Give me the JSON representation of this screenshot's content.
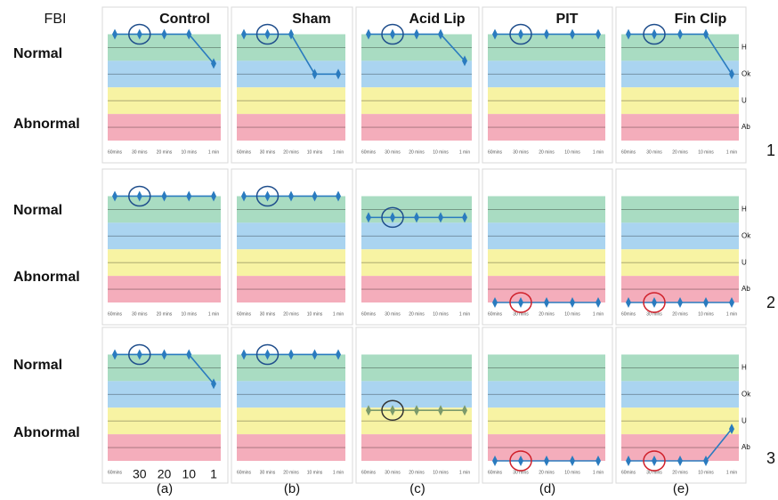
{
  "figure": {
    "ylabel": "FBI",
    "row_labels": [
      "Normal",
      "Abnormal"
    ],
    "row_numbers": [
      "1",
      "2",
      "3"
    ],
    "column_labels": [
      "(a)",
      "(b)",
      "(c)",
      "(d)",
      "(e)"
    ]
  },
  "bands": [
    {
      "label": "H",
      "from": 3,
      "to": 4,
      "color": "#a9dcc2"
    },
    {
      "label": "Ok",
      "from": 2,
      "to": 3,
      "color": "#aad4f0"
    },
    {
      "label": "U",
      "from": 1,
      "to": 2,
      "color": "#f7f3a3"
    },
    {
      "label": "Ab",
      "from": 0,
      "to": 1,
      "color": "#f4adbb"
    }
  ],
  "chart_data": [
    {
      "type": "line",
      "title": "Control",
      "categories": [
        "60mins",
        "30 mins",
        "20 mins",
        "10 mins",
        "1 min"
      ],
      "values": [
        4,
        4,
        4,
        4,
        2.9
      ],
      "color": "#2a7bbf",
      "ylim": [
        0,
        4.15
      ],
      "highlight_index": 1,
      "highlight_color": "#1f4e8c"
    },
    {
      "type": "line",
      "title": "Sham",
      "categories": [
        "60mins",
        "30 mins",
        "20 mins",
        "10 mins",
        "1 min"
      ],
      "values": [
        4,
        4,
        4,
        2.5,
        2.5
      ],
      "color": "#2a7bbf",
      "ylim": [
        0,
        4.15
      ],
      "highlight_index": 1,
      "highlight_color": "#1f4e8c"
    },
    {
      "type": "line",
      "title": "Acid Lip",
      "categories": [
        "60mins",
        "30 mins",
        "20 mins",
        "10 mins",
        "1 min"
      ],
      "values": [
        4,
        4,
        4,
        4,
        3.0
      ],
      "color": "#2a7bbf",
      "ylim": [
        0,
        4.15
      ],
      "highlight_index": 1,
      "highlight_color": "#1f4e8c"
    },
    {
      "type": "line",
      "title": "PIT",
      "categories": [
        "60mins",
        "30 mins",
        "20 mins",
        "10 mins",
        "1 min"
      ],
      "values": [
        4,
        4,
        4,
        4,
        4
      ],
      "color": "#2a7bbf",
      "ylim": [
        0,
        4.15
      ],
      "highlight_index": 1,
      "highlight_color": "#1f4e8c"
    },
    {
      "type": "line",
      "title": "Fin Clip",
      "categories": [
        "60mins",
        "30 mins",
        "20 mins",
        "10 mins",
        "1 min"
      ],
      "values": [
        4,
        4,
        4,
        4,
        2.5
      ],
      "color": "#2a7bbf",
      "ylim": [
        0,
        4.15
      ],
      "highlight_index": 1,
      "highlight_color": "#1f4e8c"
    },
    {
      "type": "line",
      "categories": [
        "60mins",
        "30 mins",
        "20 mins",
        "10 mins",
        "1 min"
      ],
      "values": [
        4,
        4,
        4,
        4,
        4
      ],
      "color": "#2a7bbf",
      "ylim": [
        0,
        4.15
      ],
      "highlight_index": 1,
      "highlight_color": "#1f4e8c"
    },
    {
      "type": "line",
      "categories": [
        "60mins",
        "30 mins",
        "20 mins",
        "10 mins",
        "1 min"
      ],
      "values": [
        4,
        4,
        4,
        4,
        4
      ],
      "color": "#2a7bbf",
      "ylim": [
        0,
        4.15
      ],
      "highlight_index": 1,
      "highlight_color": "#1f4e8c"
    },
    {
      "type": "line",
      "categories": [
        "60mins",
        "30 mins",
        "20 mins",
        "10 mins",
        "1 min"
      ],
      "values": [
        3.2,
        3.2,
        3.2,
        3.2,
        3.2
      ],
      "color": "#2a7bbf",
      "ylim": [
        0,
        4.15
      ],
      "highlight_index": 1,
      "highlight_color": "#1f4e8c"
    },
    {
      "type": "line",
      "categories": [
        "60mins",
        "30 mins",
        "20 mins",
        "10 mins",
        "1 min"
      ],
      "values": [
        0,
        0,
        0,
        0,
        0
      ],
      "color": "#2a7bbf",
      "ylim": [
        0,
        4.15
      ],
      "highlight_index": 1,
      "highlight_color": "#d0202a"
    },
    {
      "type": "line",
      "categories": [
        "60mins",
        "30 mins",
        "20 mins",
        "10 mins",
        "1 min"
      ],
      "values": [
        0,
        0,
        0,
        0,
        0
      ],
      "color": "#2a7bbf",
      "ylim": [
        0,
        4.15
      ],
      "highlight_index": 1,
      "highlight_color": "#d0202a"
    },
    {
      "type": "line",
      "categories": [
        "60mins",
        "30",
        "20",
        "10",
        "1"
      ],
      "values": [
        4,
        4,
        4,
        4,
        2.9
      ],
      "color": "#2a7bbf",
      "ylim": [
        0,
        4.15
      ],
      "highlight_index": 1,
      "highlight_color": "#1f4e8c"
    },
    {
      "type": "line",
      "categories": [
        "60mins",
        "30 mins",
        "20 mins",
        "10 mins",
        "1 min"
      ],
      "values": [
        4,
        4,
        4,
        4,
        4
      ],
      "color": "#2a7bbf",
      "ylim": [
        0,
        4.15
      ],
      "highlight_index": 1,
      "highlight_color": "#1f4e8c"
    },
    {
      "type": "line",
      "categories": [
        "60mins",
        "30 mins",
        "20 mins",
        "10 mins",
        "1 min"
      ],
      "values": [
        1.9,
        1.9,
        1.9,
        1.9,
        1.9
      ],
      "color": "#7b9a6b",
      "ylim": [
        0,
        4.15
      ],
      "highlight_index": 1,
      "highlight_color": "#333333"
    },
    {
      "type": "line",
      "categories": [
        "60mins",
        "30 mins",
        "20 mins",
        "10 mins",
        "1 min"
      ],
      "values": [
        0,
        0,
        0,
        0,
        0
      ],
      "color": "#2a7bbf",
      "ylim": [
        0,
        4.15
      ],
      "highlight_index": 1,
      "highlight_color": "#d0202a"
    },
    {
      "type": "line",
      "categories": [
        "60mins",
        "30 mins",
        "20 mins",
        "10 mins",
        "1 min"
      ],
      "values": [
        0,
        0,
        0,
        0,
        1.2
      ],
      "color": "#2a7bbf",
      "ylim": [
        0,
        4.15
      ],
      "highlight_index": 1,
      "highlight_color": "#d0202a"
    }
  ]
}
